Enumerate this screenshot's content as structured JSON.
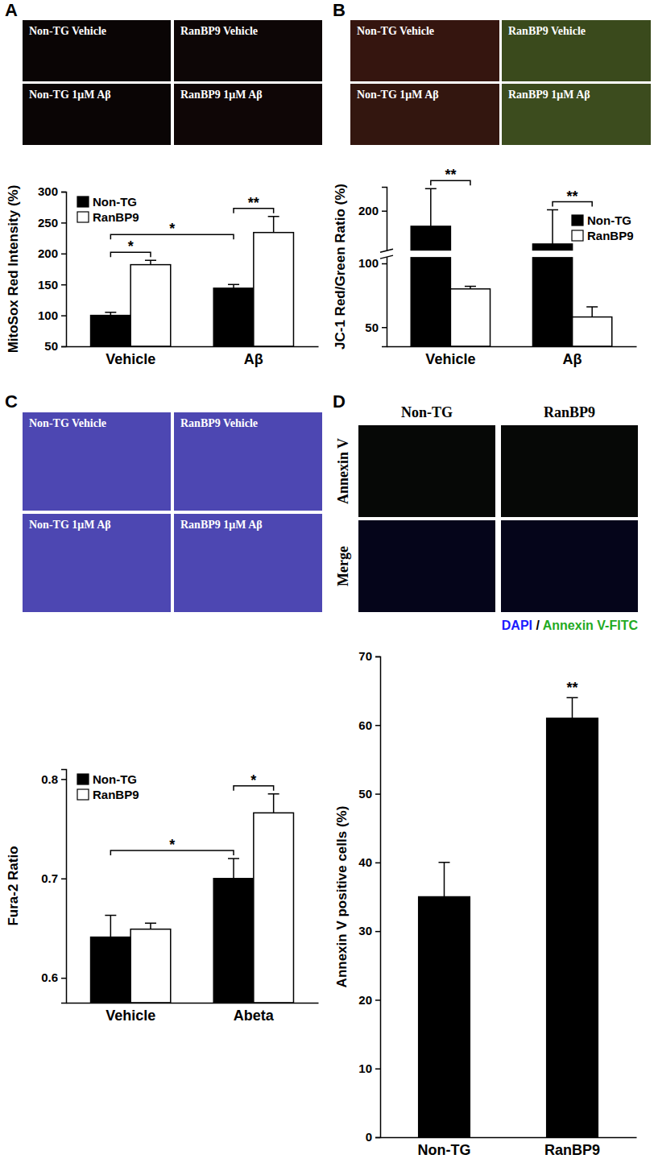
{
  "figure": {
    "panels": [
      {
        "letter": "A",
        "images": [
          "Non-TG Vehicle",
          "RanBP9 Vehicle",
          "Non-TG 1μM Aβ",
          "RanBP9 1μM Aβ"
        ]
      },
      {
        "letter": "B",
        "images": [
          "Non-TG Vehicle",
          "RanBP9 Vehicle",
          "Non-TG 1μM Aβ",
          "RanBP9 1μM Aβ"
        ]
      },
      {
        "letter": "C",
        "images": [
          "Non-TG Vehicle",
          "RanBP9 Vehicle",
          "Non-TG 1μM Aβ",
          "RanBP9 1μM Aβ"
        ]
      },
      {
        "letter": "D",
        "columns": [
          "Non-TG",
          "RanBP9"
        ],
        "rows": [
          "Annexin V",
          "Merge"
        ],
        "caption": [
          {
            "text": "DAPI",
            "color": "#1a1aff"
          },
          {
            "text": " / ",
            "color": "#000000"
          },
          {
            "text": "Annexin V-FITC",
            "color": "#22aa22"
          }
        ]
      }
    ]
  },
  "chart_data": [
    {
      "type": "bar",
      "y_label": "MitoSox Red Intensity (%)",
      "categories": [
        "Vehicle",
        "Aβ"
      ],
      "series": [
        {
          "name": "Non-TG",
          "color": "#000000",
          "values": [
            100,
            144
          ],
          "errors": [
            5,
            6
          ]
        },
        {
          "name": "RanBP9",
          "color": "#ffffff",
          "values": [
            182,
            234
          ],
          "errors": [
            7,
            26
          ]
        }
      ],
      "ylim": [
        50,
        300
      ],
      "yticks": [
        50,
        100,
        150,
        200,
        250,
        300
      ],
      "legend": "upper left",
      "significance": [
        {
          "label": "*",
          "from": {
            "series": "Non-TG",
            "category": "Vehicle"
          },
          "to": {
            "series": "RanBP9",
            "category": "Vehicle"
          }
        },
        {
          "label": "*",
          "from": {
            "series": "Non-TG",
            "category": "Vehicle"
          },
          "to": {
            "series": "Non-TG",
            "category": "Aβ"
          }
        },
        {
          "label": "**",
          "from": {
            "series": "Non-TG",
            "category": "Aβ"
          },
          "to": {
            "series": "RanBP9",
            "category": "Aβ"
          }
        }
      ]
    },
    {
      "type": "bar",
      "y_label": "JC-1 Red/Green Ratio (%)",
      "categories": [
        "Vehicle",
        "Aβ"
      ],
      "series": [
        {
          "name": "Non-TG",
          "color": "#000000",
          "values": [
            165,
            125
          ],
          "errors": [
            85,
            77
          ]
        },
        {
          "name": "RanBP9",
          "color": "#ffffff",
          "values": [
            80,
            58
          ],
          "errors": [
            2,
            8
          ]
        }
      ],
      "ylim": [
        35,
        254
      ],
      "y_break": [
        105,
        110
      ],
      "yticks": [
        50,
        100,
        200
      ],
      "legend": "right",
      "significance": [
        {
          "label": "**",
          "from": {
            "series": "Non-TG",
            "category": "Vehicle"
          },
          "to": {
            "series": "RanBP9",
            "category": "Vehicle"
          }
        },
        {
          "label": "**",
          "from": {
            "series": "Non-TG",
            "category": "Aβ"
          },
          "to": {
            "series": "RanBP9",
            "category": "Aβ"
          }
        }
      ]
    },
    {
      "type": "bar",
      "y_label": "Fura-2 Ratio",
      "categories": [
        "Vehicle",
        "Abeta"
      ],
      "series": [
        {
          "name": "Non-TG",
          "color": "#000000",
          "values": [
            0.641,
            0.7
          ],
          "errors": [
            0.022,
            0.02
          ]
        },
        {
          "name": "RanBP9",
          "color": "#ffffff",
          "values": [
            0.649,
            0.766
          ],
          "errors": [
            0.006,
            0.019
          ]
        }
      ],
      "ylim": [
        0.575,
        0.81
      ],
      "yticks": [
        0.6,
        0.7,
        0.8
      ],
      "legend": "upper left",
      "significance": [
        {
          "label": "*",
          "from": {
            "series": "Non-TG",
            "category": "Vehicle"
          },
          "to": {
            "series": "Non-TG",
            "category": "Abeta"
          }
        },
        {
          "label": "*",
          "from": {
            "series": "Non-TG",
            "category": "Abeta"
          },
          "to": {
            "series": "RanBP9",
            "category": "Abeta"
          }
        }
      ]
    },
    {
      "type": "bar",
      "y_label": "Annexin V positive cells (%)",
      "categories": [
        "Non-TG",
        "RanBP9"
      ],
      "values": [
        35,
        61
      ],
      "errors": [
        5,
        3
      ],
      "color": "#000000",
      "ylim": [
        0,
        70
      ],
      "yticks": [
        0,
        10,
        20,
        30,
        40,
        50,
        60,
        70
      ],
      "annotations": [
        {
          "text": "**",
          "category": "RanBP9"
        }
      ]
    }
  ]
}
